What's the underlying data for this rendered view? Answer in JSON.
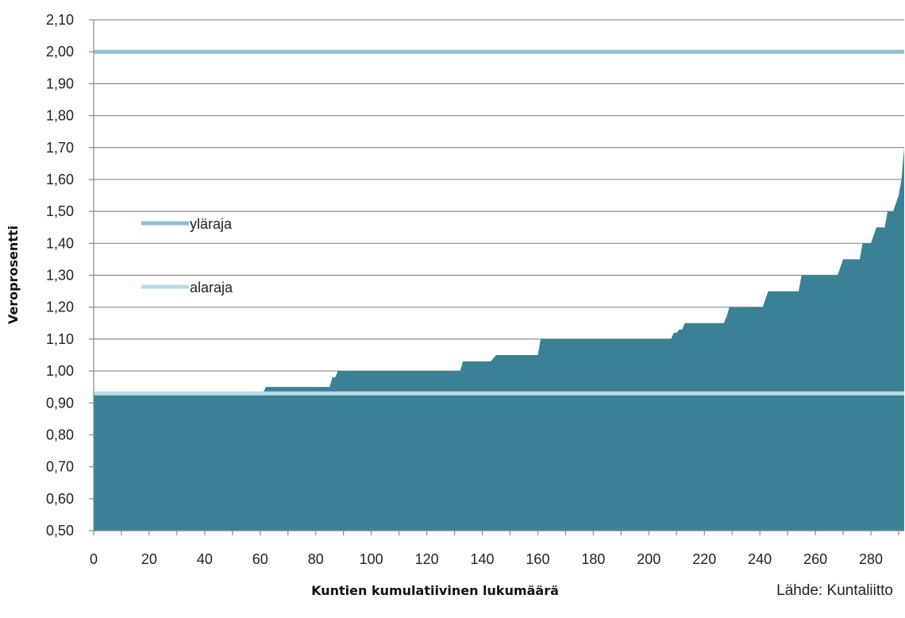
{
  "chart_data": {
    "type": "area",
    "xlabel": "Kuntien kumulatiivinen lukumäärä",
    "ylabel": "Veroprosentti",
    "xlim": [
      0,
      292
    ],
    "ylim": [
      0.5,
      2.1
    ],
    "grid": "horizontal",
    "x_ticks": [
      "0",
      "20",
      "40",
      "60",
      "80",
      "100",
      "120",
      "140",
      "160",
      "180",
      "200",
      "220",
      "240",
      "260",
      "280"
    ],
    "y_ticks": [
      "0,50",
      "0,60",
      "0,70",
      "0,80",
      "0,90",
      "1,00",
      "1,10",
      "1,20",
      "1,30",
      "1,40",
      "1,50",
      "1,60",
      "1,70",
      "1,80",
      "1,90",
      "2,00",
      "2,10"
    ],
    "series": [
      {
        "kind": "area",
        "color": "#3a8195",
        "points": [
          [
            0,
            0.93
          ],
          [
            61,
            0.93
          ],
          [
            62,
            0.95
          ],
          [
            85,
            0.95
          ],
          [
            86,
            0.98
          ],
          [
            87,
            0.98
          ],
          [
            88,
            1.0
          ],
          [
            132,
            1.0
          ],
          [
            133,
            1.03
          ],
          [
            143,
            1.03
          ],
          [
            145,
            1.05
          ],
          [
            160,
            1.05
          ],
          [
            161,
            1.1
          ],
          [
            208,
            1.1
          ],
          [
            209,
            1.12
          ],
          [
            210,
            1.12
          ],
          [
            211,
            1.13
          ],
          [
            212,
            1.13
          ],
          [
            213,
            1.15
          ],
          [
            227,
            1.15
          ],
          [
            228,
            1.17
          ],
          [
            229,
            1.2
          ],
          [
            241,
            1.2
          ],
          [
            243,
            1.25
          ],
          [
            254,
            1.25
          ],
          [
            255,
            1.3
          ],
          [
            268,
            1.3
          ],
          [
            270,
            1.35
          ],
          [
            276,
            1.35
          ],
          [
            277,
            1.4
          ],
          [
            280,
            1.4
          ],
          [
            282,
            1.45
          ],
          [
            285,
            1.45
          ],
          [
            286,
            1.5
          ],
          [
            288,
            1.5
          ],
          [
            290,
            1.55
          ],
          [
            291,
            1.6
          ],
          [
            292,
            1.7
          ]
        ]
      },
      {
        "name": "yläraja",
        "kind": "hline",
        "value": 2.0,
        "color": "#8cc0d6"
      },
      {
        "name": "alaraja",
        "kind": "hline",
        "value": 0.93,
        "color": "#b9dbe6"
      }
    ],
    "legend": [
      {
        "label": "yläraja",
        "color": "#8cc0d6"
      },
      {
        "label": "alaraja",
        "color": "#b9dbe6"
      }
    ],
    "legend_position": "left-middle",
    "source": "Lähde: Kuntaliitto"
  }
}
